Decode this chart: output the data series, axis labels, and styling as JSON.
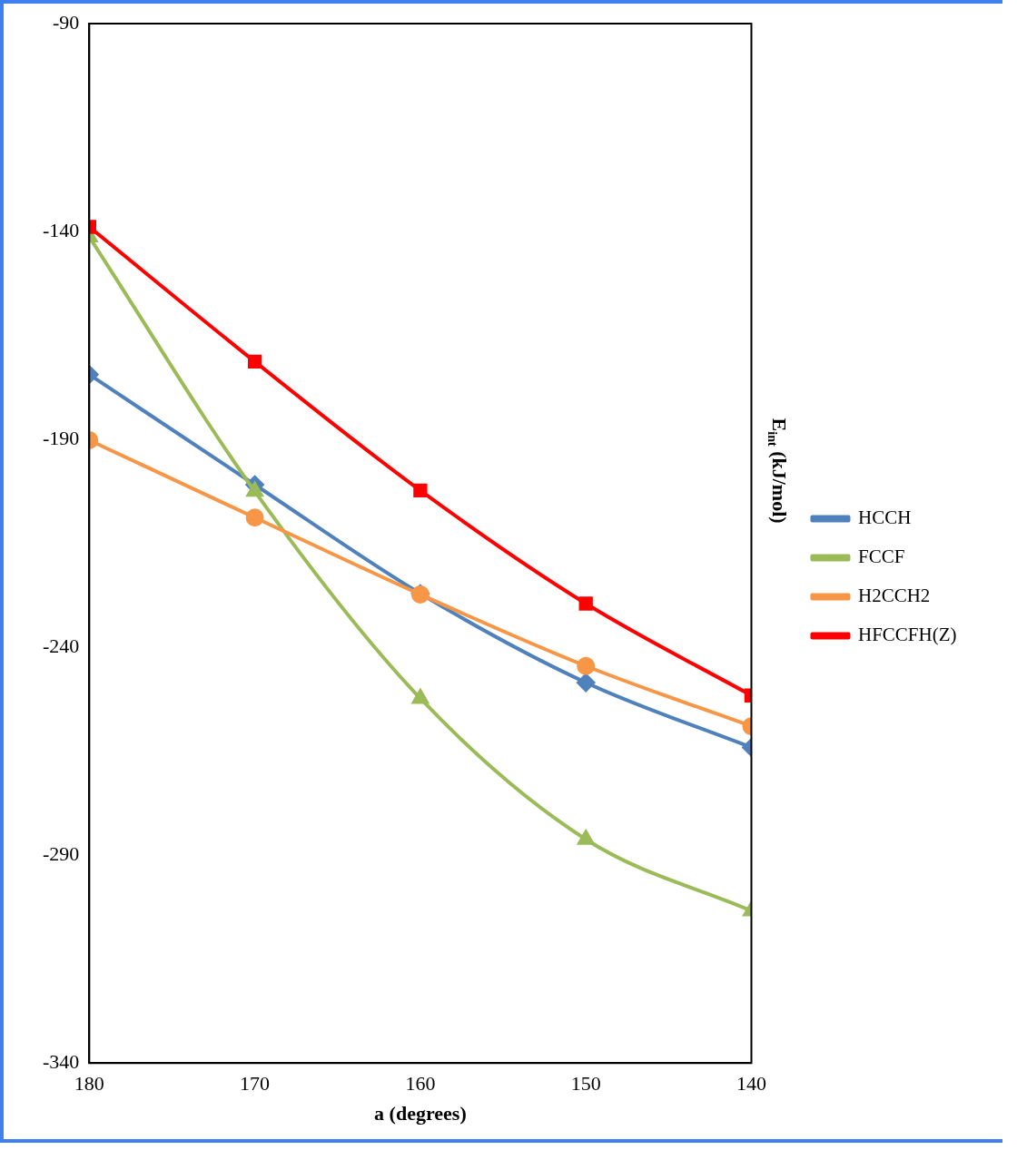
{
  "chart_data": {
    "type": "line",
    "xlabel": "a (degrees)",
    "ylabel": "E$_{int}$ (kJ/mol)",
    "x": [
      180,
      170,
      160,
      150,
      140
    ],
    "series": [
      {
        "name": "HCCH",
        "color": "#4f81bd",
        "marker": "diamond",
        "values": [
          -174.4,
          -200.9,
          -227.1,
          -248.5,
          -264.1
        ]
      },
      {
        "name": "FCCF",
        "color": "#9bbb59",
        "marker": "triangle",
        "values": [
          -141.3,
          -202.5,
          -252.3,
          -286.2,
          -303.4
        ]
      },
      {
        "name": "H2CCH2",
        "color": "#f79646",
        "marker": "circle",
        "values": [
          -190.2,
          -208.8,
          -227.3,
          -244.5,
          -259.0
        ]
      },
      {
        "name": "HFCCFH(Z)",
        "color": "#ff0000",
        "marker": "square",
        "values": [
          -138.9,
          -171.3,
          -202.3,
          -229.5,
          -251.6
        ]
      }
    ],
    "xlim": [
      180,
      140
    ],
    "xticks": [
      180,
      170,
      160,
      150,
      140
    ],
    "ylim": [
      -340,
      -90
    ],
    "yticks": [
      -90,
      -140,
      -190,
      -240,
      -290,
      -340
    ],
    "grid": false,
    "legend": "right"
  }
}
